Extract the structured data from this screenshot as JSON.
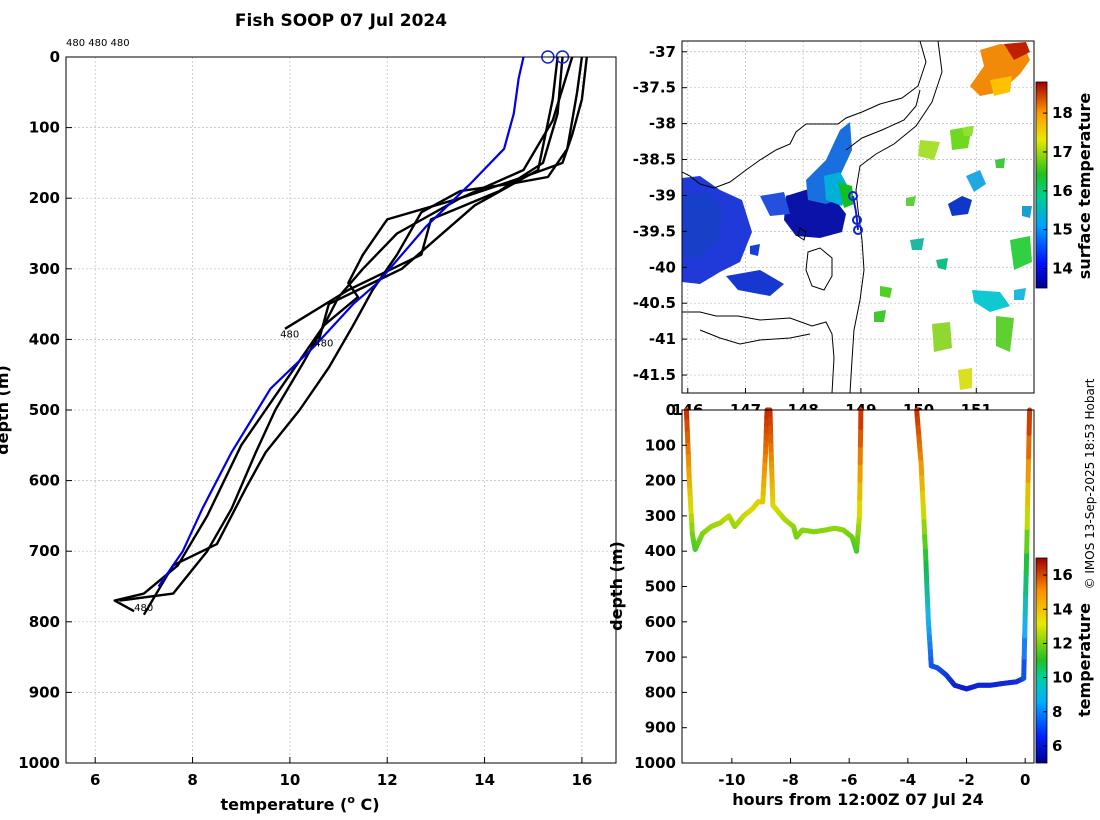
{
  "chart_data": [
    {
      "type": "line",
      "name": "temperature-depth-profiles",
      "title": "Fish SOOP 07 Jul 2024",
      "xlabel": "temperature (",
      "xlabel_sup": "o",
      "xlabel_end": " C)",
      "ylabel": "depth (m)",
      "xlim": [
        5.4,
        16.7
      ],
      "ylim": [
        0,
        1000
      ],
      "y_reversed": true,
      "xticks": [
        6,
        8,
        10,
        12,
        14,
        16
      ],
      "yticks": [
        0,
        100,
        200,
        300,
        400,
        500,
        600,
        700,
        800,
        900,
        1000
      ],
      "grid": true,
      "header_labels": "480 480 480",
      "profile_labels": [
        {
          "text": "480",
          "x": 9.8,
          "y": 397
        },
        {
          "text": "480",
          "x": 10.5,
          "y": 410
        },
        {
          "text": "480",
          "x": 6.8,
          "y": 785
        }
      ],
      "series": [
        {
          "name": "profile-1",
          "color": "#000000",
          "points": [
            [
              15.5,
              0
            ],
            [
              15.4,
              60
            ],
            [
              15.1,
              160
            ],
            [
              13.8,
              210
            ],
            [
              12.3,
              300
            ],
            [
              10.8,
              350
            ],
            [
              10.6,
              400
            ]
          ]
        },
        {
          "name": "profile-2",
          "color": "#000000",
          "points": [
            [
              15.6,
              0
            ],
            [
              15.5,
              80
            ],
            [
              15.2,
              150
            ],
            [
              14.3,
              190
            ],
            [
              12.9,
              230
            ],
            [
              12.7,
              280
            ],
            [
              11.2,
              330
            ],
            [
              9.9,
              385
            ]
          ]
        },
        {
          "name": "profile-3",
          "color": "#000000",
          "points": [
            [
              15.8,
              0
            ],
            [
              15.4,
              90
            ],
            [
              14.8,
              160
            ],
            [
              13.5,
              200
            ],
            [
              12.2,
              250
            ],
            [
              11.5,
              300
            ],
            [
              11.0,
              340
            ],
            [
              10.7,
              380
            ],
            [
              10.0,
              450
            ],
            [
              9.0,
              550
            ],
            [
              8.3,
              650
            ],
            [
              7.7,
              720
            ],
            [
              7.0,
              760
            ],
            [
              6.4,
              770
            ],
            [
              6.8,
              785
            ]
          ]
        },
        {
          "name": "profile-4",
          "color": "#000000",
          "points": [
            [
              16.0,
              0
            ],
            [
              15.9,
              50
            ],
            [
              15.7,
              130
            ],
            [
              15.3,
              170
            ],
            [
              14.5,
              180
            ],
            [
              13.5,
              190
            ],
            [
              12.7,
              220
            ],
            [
              12.2,
              280
            ],
            [
              11.7,
              330
            ],
            [
              11.3,
              380
            ],
            [
              10.8,
              440
            ],
            [
              10.2,
              500
            ],
            [
              9.5,
              560
            ],
            [
              9.1,
              610
            ],
            [
              8.5,
              690
            ],
            [
              7.6,
              720
            ],
            [
              7.0,
              790
            ]
          ]
        },
        {
          "name": "profile-5",
          "color": "#000000",
          "points": [
            [
              16.1,
              0
            ],
            [
              16.0,
              60
            ],
            [
              15.8,
              110
            ],
            [
              15.6,
              150
            ],
            [
              14.8,
              170
            ],
            [
              13.5,
              200
            ],
            [
              12.0,
              230
            ],
            [
              11.5,
              280
            ],
            [
              11.2,
              320
            ],
            [
              11.4,
              340
            ],
            [
              10.7,
              380
            ],
            [
              10.3,
              430
            ],
            [
              9.7,
              500
            ],
            [
              9.3,
              560
            ],
            [
              8.8,
              640
            ],
            [
              8.3,
              700
            ],
            [
              7.6,
              760
            ],
            [
              6.5,
              770
            ]
          ]
        },
        {
          "name": "mean-profile",
          "color": "#0000e6",
          "points": [
            [
              14.8,
              0
            ],
            [
              14.7,
              30
            ],
            [
              14.6,
              80
            ],
            [
              14.4,
              130
            ],
            [
              13.7,
              180
            ],
            [
              12.8,
              240
            ],
            [
              12.3,
              280
            ],
            [
              11.8,
              320
            ],
            [
              11.3,
              350
            ],
            [
              10.5,
              410
            ],
            [
              9.6,
              470
            ],
            [
              8.8,
              560
            ],
            [
              8.2,
              640
            ],
            [
              7.8,
              700
            ],
            [
              7.3,
              750
            ]
          ]
        }
      ],
      "markers": [
        [
          15.3,
          0
        ],
        [
          15.6,
          0
        ]
      ]
    },
    {
      "type": "heatmap",
      "name": "surface-temperature-map",
      "xlabel": "",
      "ylabel": "",
      "xticks": [
        "146",
        "147",
        "148",
        "149",
        "150",
        "151"
      ],
      "yticks": [
        "-37",
        "-37.5",
        "-38",
        "-38.5",
        "-39",
        "-39.5",
        "-40",
        "-40.5",
        "-41",
        "-41.5"
      ],
      "xlim": [
        145.9,
        152.0
      ],
      "ylim": [
        -41.75,
        -36.85
      ],
      "colorbar_label": "surface temperature",
      "colorbar_ticks": [
        "14",
        "15",
        "16",
        "17",
        "18"
      ],
      "colorbar_range": [
        13.5,
        18.8
      ]
    },
    {
      "type": "line",
      "name": "depth-time-track",
      "xlabel": "hours from 12:00Z 07 Jul 24",
      "ylabel": "depth (m)",
      "xlim": [
        -11.7,
        0.3
      ],
      "ylim": [
        0,
        1000
      ],
      "y_reversed": true,
      "xticks": [
        "-10",
        "-8",
        "-6",
        "-4",
        "-2",
        "0"
      ],
      "yticks": [
        "0",
        "100",
        "200",
        "300",
        "400",
        "500",
        "600",
        "700",
        "800",
        "900",
        "1000"
      ],
      "colorbar_label": "temperature",
      "colorbar_ticks": [
        "6",
        "8",
        "10",
        "12",
        "14",
        "16"
      ],
      "colorbar_range": [
        5,
        17
      ],
      "segments": [
        [
          [
            -11.55,
            0
          ],
          [
            -11.45,
            200
          ],
          [
            -11.35,
            350
          ],
          [
            -11.25,
            395
          ],
          [
            -11.0,
            350
          ],
          [
            -10.7,
            330
          ],
          [
            -10.4,
            320
          ],
          [
            -10.1,
            300
          ],
          [
            -9.9,
            330
          ],
          [
            -9.6,
            300
          ],
          [
            -9.3,
            280
          ],
          [
            -9.1,
            260
          ],
          [
            -8.95,
            260
          ],
          [
            -8.85,
            120
          ],
          [
            -8.8,
            0
          ],
          [
            -8.7,
            0
          ],
          [
            -8.65,
            150
          ],
          [
            -8.6,
            270
          ],
          [
            -8.4,
            290
          ],
          [
            -8.2,
            310
          ],
          [
            -7.9,
            330
          ],
          [
            -7.8,
            360
          ],
          [
            -7.6,
            340
          ],
          [
            -7.2,
            345
          ],
          [
            -6.8,
            340
          ],
          [
            -6.5,
            335
          ],
          [
            -6.2,
            340
          ],
          [
            -5.9,
            360
          ],
          [
            -5.75,
            400
          ],
          [
            -5.65,
            300
          ],
          [
            -5.6,
            0
          ]
        ],
        [
          [
            -3.7,
            0
          ],
          [
            -3.55,
            150
          ],
          [
            -3.4,
            400
          ],
          [
            -3.3,
            600
          ],
          [
            -3.2,
            725
          ],
          [
            -3.0,
            730
          ],
          [
            -2.7,
            750
          ],
          [
            -2.4,
            780
          ],
          [
            -2.0,
            790
          ],
          [
            -1.6,
            780
          ],
          [
            -1.2,
            780
          ],
          [
            -0.8,
            775
          ],
          [
            -0.3,
            770
          ],
          [
            -0.05,
            760
          ],
          [
            0.05,
            400
          ],
          [
            0.15,
            0
          ]
        ]
      ]
    }
  ],
  "credit": "© IMOS 13-Sep-2025 18:53 Hobart",
  "palette": {
    "profile": "#000000",
    "mean": "#0000e6",
    "grid": "#bdbdbd"
  }
}
